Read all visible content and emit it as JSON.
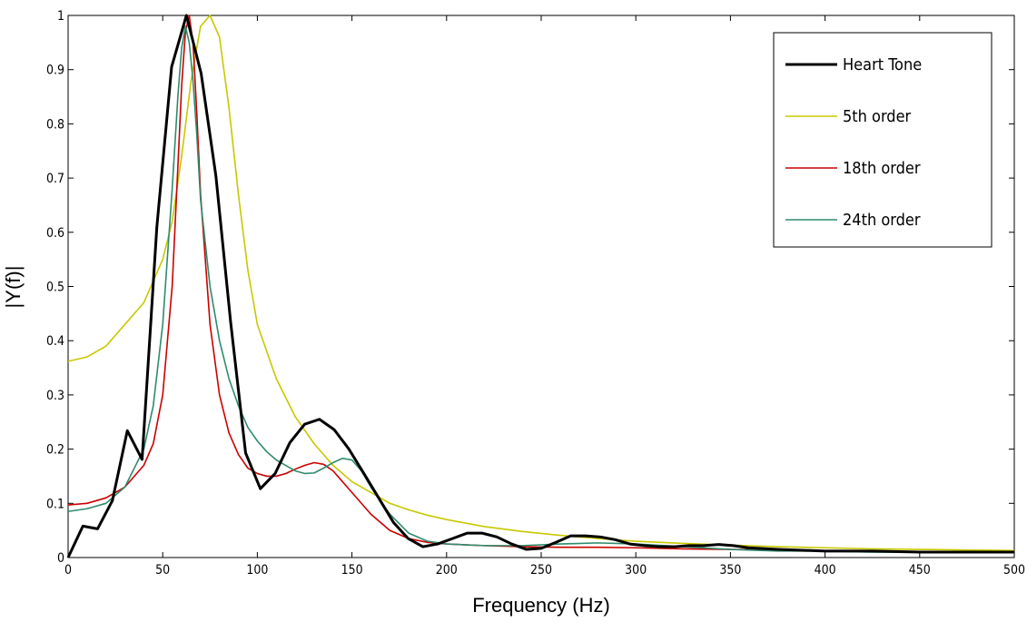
{
  "chart_data": {
    "type": "line",
    "title": "",
    "xlabel": "Frequency (Hz)",
    "ylabel": "|Y(f)|",
    "xlim": [
      0,
      500
    ],
    "ylim": [
      0,
      1
    ],
    "xticks": [
      0,
      50,
      100,
      150,
      200,
      250,
      300,
      350,
      400,
      450,
      500
    ],
    "yticks": [
      0,
      0.1,
      0.2,
      0.3,
      0.4,
      0.5,
      0.6,
      0.7,
      0.8,
      0.9,
      1
    ],
    "xtick_labels": [
      "0",
      "50",
      "100",
      "150",
      "200",
      "250",
      "300",
      "350",
      "400",
      "450",
      "500"
    ],
    "ytick_labels": [
      "0",
      "0.1",
      "0.2",
      "0.3",
      "0.4",
      "0.5",
      "0.6",
      "0.7",
      "0.8",
      "0.9",
      "1"
    ],
    "grid": false,
    "legend_position": "top-right",
    "series": [
      {
        "name": "Heart Tone",
        "color": "#000000",
        "line_width": "thick",
        "x": [
          0,
          7.8,
          15.6,
          23.4,
          31.3,
          39.1,
          46.9,
          54.7,
          62.5,
          70.3,
          78.1,
          85.9,
          93.8,
          101.6,
          109.4,
          117.2,
          125,
          132.8,
          140.6,
          148.4,
          156.3,
          164.1,
          171.9,
          179.7,
          187.5,
          195.3,
          203.1,
          210.9,
          218.8,
          226.6,
          234.4,
          242.2,
          250,
          257.8,
          265.6,
          273.4,
          281.3,
          289.1,
          296.9,
          304.7,
          312.5,
          320.3,
          328.1,
          335.9,
          343.8,
          351.6,
          359.4,
          375,
          400,
          425,
          450,
          475,
          500
        ],
        "values": [
          0.0,
          0.058,
          0.053,
          0.105,
          0.234,
          0.181,
          0.61,
          0.905,
          1.0,
          0.893,
          0.704,
          0.434,
          0.193,
          0.127,
          0.155,
          0.212,
          0.246,
          0.255,
          0.236,
          0.2,
          0.155,
          0.11,
          0.065,
          0.035,
          0.02,
          0.025,
          0.035,
          0.045,
          0.045,
          0.038,
          0.025,
          0.015,
          0.017,
          0.028,
          0.04,
          0.04,
          0.038,
          0.033,
          0.025,
          0.022,
          0.02,
          0.02,
          0.022,
          0.022,
          0.024,
          0.022,
          0.018,
          0.015,
          0.012,
          0.012,
          0.01,
          0.01,
          0.01
        ]
      },
      {
        "name": "5th order",
        "color": "#c8c800",
        "line_width": "thin",
        "x": [
          0,
          10,
          20,
          30,
          40,
          50,
          55,
          60,
          65,
          70,
          75,
          80,
          85,
          90,
          95,
          100,
          110,
          120,
          130,
          140,
          150,
          160,
          170,
          180,
          190,
          200,
          220,
          240,
          260,
          280,
          300,
          325,
          350,
          375,
          400,
          425,
          450,
          475,
          500
        ],
        "values": [
          0.362,
          0.37,
          0.39,
          0.43,
          0.47,
          0.55,
          0.62,
          0.74,
          0.88,
          0.98,
          1.0,
          0.96,
          0.83,
          0.67,
          0.53,
          0.43,
          0.33,
          0.26,
          0.21,
          0.17,
          0.14,
          0.12,
          0.1,
          0.088,
          0.078,
          0.07,
          0.057,
          0.048,
          0.041,
          0.035,
          0.03,
          0.026,
          0.023,
          0.02,
          0.018,
          0.016,
          0.015,
          0.014,
          0.013
        ]
      },
      {
        "name": "18th order",
        "color": "#cc0000",
        "line_width": "thin",
        "x": [
          0,
          10,
          20,
          30,
          40,
          45,
          50,
          55,
          58,
          60,
          62,
          64,
          66,
          68,
          70,
          75,
          80,
          85,
          90,
          95,
          100,
          105,
          110,
          115,
          120,
          125,
          130,
          135,
          140,
          145,
          150,
          160,
          170,
          180,
          190,
          200,
          220,
          240,
          260,
          280,
          300,
          325,
          350,
          375,
          400,
          425,
          450,
          475,
          500
        ],
        "values": [
          0.097,
          0.1,
          0.11,
          0.13,
          0.17,
          0.21,
          0.3,
          0.5,
          0.72,
          0.87,
          0.97,
          1.0,
          0.95,
          0.82,
          0.67,
          0.43,
          0.3,
          0.23,
          0.19,
          0.165,
          0.155,
          0.15,
          0.15,
          0.155,
          0.163,
          0.17,
          0.175,
          0.172,
          0.16,
          0.14,
          0.12,
          0.08,
          0.05,
          0.035,
          0.028,
          0.025,
          0.022,
          0.02,
          0.019,
          0.019,
          0.018,
          0.016,
          0.015,
          0.014,
          0.013,
          0.012,
          0.011,
          0.011,
          0.01
        ]
      },
      {
        "name": "24th order",
        "color": "#2e8b6e",
        "line_width": "thin",
        "x": [
          0,
          10,
          20,
          30,
          40,
          45,
          50,
          55,
          58,
          60,
          62,
          64,
          66,
          68,
          70,
          75,
          80,
          85,
          90,
          95,
          100,
          105,
          110,
          115,
          120,
          125,
          130,
          135,
          140,
          145,
          150,
          155,
          160,
          170,
          180,
          190,
          200,
          220,
          240,
          260,
          280,
          300,
          325,
          350,
          375,
          400,
          425,
          450,
          475,
          500
        ],
        "values": [
          0.085,
          0.09,
          0.1,
          0.13,
          0.2,
          0.28,
          0.43,
          0.68,
          0.85,
          0.94,
          0.98,
          0.95,
          0.88,
          0.78,
          0.66,
          0.5,
          0.4,
          0.33,
          0.28,
          0.24,
          0.215,
          0.195,
          0.18,
          0.17,
          0.16,
          0.155,
          0.156,
          0.165,
          0.175,
          0.183,
          0.18,
          0.16,
          0.13,
          0.08,
          0.045,
          0.03,
          0.025,
          0.022,
          0.022,
          0.025,
          0.027,
          0.025,
          0.02,
          0.015,
          0.012,
          0.012,
          0.01,
          0.01,
          0.009,
          0.009
        ]
      }
    ]
  }
}
